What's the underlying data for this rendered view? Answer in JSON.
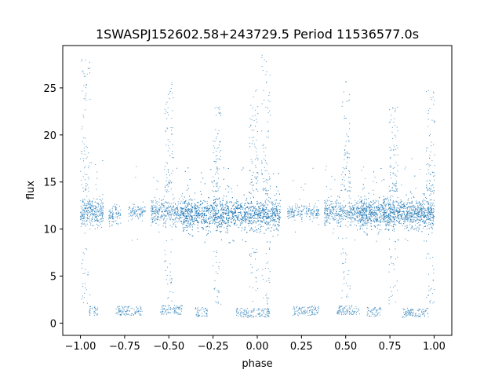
{
  "chart_data": {
    "type": "scatter",
    "title": "1SWASPJ152602.58+243729.5 Period 11536577.0s",
    "xlabel": "phase",
    "ylabel": "flux",
    "xlim": [
      -1.1,
      1.1
    ],
    "ylim": [
      -1.3,
      29.5
    ],
    "xticks": [
      -1.0,
      -0.75,
      -0.5,
      -0.25,
      0.0,
      0.25,
      0.5,
      0.75,
      1.0
    ],
    "xtick_labels": [
      "−1.00",
      "−0.75",
      "−0.50",
      "−0.25",
      "0.00",
      "0.25",
      "0.50",
      "0.75",
      "1.00"
    ],
    "yticks": [
      0,
      5,
      10,
      15,
      20,
      25
    ],
    "ytick_labels": [
      "0",
      "5",
      "10",
      "15",
      "20",
      "25"
    ],
    "grid": false,
    "point_color": "#1f77b4",
    "description_note_free": true,
    "clusters": [
      {
        "x_range": [
          -1.0,
          -0.87
        ],
        "y_center": 11.8,
        "y_spread": 1.7,
        "density": 1.0
      },
      {
        "x_range": [
          -0.84,
          -0.77
        ],
        "y_center": 11.6,
        "y_spread": 1.2,
        "density": 0.5
      },
      {
        "x_range": [
          -0.73,
          -0.63
        ],
        "y_center": 11.8,
        "y_spread": 1.0,
        "density": 0.4
      },
      {
        "x_range": [
          -0.6,
          -0.42
        ],
        "y_center": 11.8,
        "y_spread": 1.6,
        "density": 0.8
      },
      {
        "x_range": [
          -0.42,
          0.13
        ],
        "y_center": 11.6,
        "y_spread": 2.0,
        "density": 1.6
      },
      {
        "x_range": [
          0.17,
          0.35
        ],
        "y_center": 11.8,
        "y_spread": 1.0,
        "density": 0.4
      },
      {
        "x_range": [
          0.38,
          0.58
        ],
        "y_center": 11.8,
        "y_spread": 1.6,
        "density": 0.8
      },
      {
        "x_range": [
          0.58,
          1.0
        ],
        "y_center": 11.7,
        "y_spread": 1.9,
        "density": 1.5
      }
    ],
    "low_flux_points": [
      {
        "x_range": [
          -0.95,
          -0.9
        ],
        "y": 1.3
      },
      {
        "x_range": [
          -0.8,
          -0.65
        ],
        "y": 1.3
      },
      {
        "x_range": [
          -0.55,
          -0.42
        ],
        "y": 1.4
      },
      {
        "x_range": [
          -0.35,
          -0.28
        ],
        "y": 1.2
      },
      {
        "x_range": [
          -0.12,
          0.07
        ],
        "y": 1.1
      },
      {
        "x_range": [
          0.2,
          0.35
        ],
        "y": 1.3
      },
      {
        "x_range": [
          0.45,
          0.58
        ],
        "y": 1.4
      },
      {
        "x_range": [
          0.62,
          0.7
        ],
        "y": 1.2
      },
      {
        "x_range": [
          0.82,
          0.97
        ],
        "y": 1.1
      }
    ],
    "spikes": [
      {
        "x": -0.97,
        "y_max": 28.5
      },
      {
        "x": -0.5,
        "y_max": 26.0
      },
      {
        "x": -0.23,
        "y_max": 23.0
      },
      {
        "x": -0.02,
        "y_max": 25.0
      },
      {
        "x": 0.05,
        "y_max": 28.5
      },
      {
        "x": 0.5,
        "y_max": 26.0
      },
      {
        "x": 0.77,
        "y_max": 23.0
      },
      {
        "x": 0.98,
        "y_max": 25.0
      }
    ]
  }
}
